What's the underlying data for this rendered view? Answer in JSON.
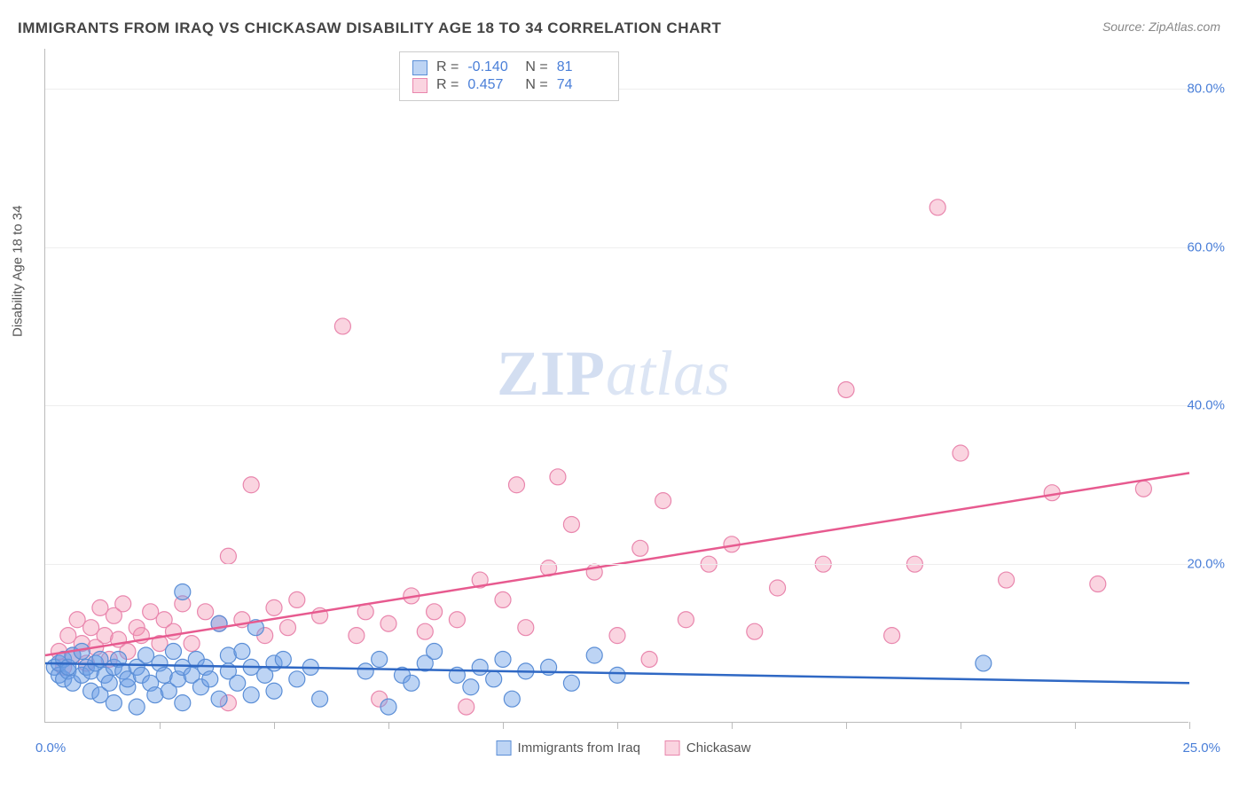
{
  "title": "IMMIGRANTS FROM IRAQ VS CHICKASAW DISABILITY AGE 18 TO 34 CORRELATION CHART",
  "source": "Source: ZipAtlas.com",
  "ylabel": "Disability Age 18 to 34",
  "watermark": {
    "a": "ZIP",
    "b": "atlas"
  },
  "axes": {
    "x_label_min": "0.0%",
    "x_label_max": "25.0%",
    "xlim": [
      0,
      25
    ],
    "ylim": [
      0,
      85
    ],
    "y_ticks": [
      20,
      40,
      60,
      80
    ],
    "y_tick_labels": [
      "20.0%",
      "40.0%",
      "60.0%",
      "80.0%"
    ],
    "x_tick_positions": [
      2.5,
      5.0,
      7.5,
      10.0,
      12.5,
      15.0,
      17.5,
      20.0,
      22.5,
      25.0
    ]
  },
  "legend": {
    "series_a": "Immigrants from Iraq",
    "series_b": "Chickasaw"
  },
  "stats": {
    "a": {
      "R_label": "R =",
      "R": "-0.140",
      "N_label": "N =",
      "N": "81"
    },
    "b": {
      "R_label": "R =",
      "R": "0.457",
      "N_label": "N =",
      "N": "74"
    }
  },
  "series_a": {
    "name": "Immigrants from Iraq",
    "color_fill": "rgba(108,160,230,0.45)",
    "color_stroke": "#5b8ed6",
    "marker_radius": 9,
    "line_color": "#2f68c4",
    "line_width": 2.5,
    "trend": {
      "x1": 0,
      "y1": 7.5,
      "x2": 25,
      "y2": 5.0
    },
    "points": [
      [
        0.2,
        7.0
      ],
      [
        0.3,
        6.0
      ],
      [
        0.3,
        7.5
      ],
      [
        0.4,
        5.5
      ],
      [
        0.4,
        8.0
      ],
      [
        0.5,
        6.5
      ],
      [
        0.5,
        7.0
      ],
      [
        0.6,
        8.5
      ],
      [
        0.6,
        5.0
      ],
      [
        0.8,
        6.0
      ],
      [
        0.8,
        9.0
      ],
      [
        0.9,
        7.0
      ],
      [
        1.0,
        6.5
      ],
      [
        1.0,
        4.0
      ],
      [
        1.1,
        7.5
      ],
      [
        1.2,
        3.5
      ],
      [
        1.2,
        8.0
      ],
      [
        1.3,
        6.0
      ],
      [
        1.4,
        5.0
      ],
      [
        1.5,
        7.0
      ],
      [
        1.5,
        2.5
      ],
      [
        1.6,
        8.0
      ],
      [
        1.7,
        6.5
      ],
      [
        1.8,
        4.5
      ],
      [
        1.8,
        5.5
      ],
      [
        2.0,
        7.0
      ],
      [
        2.0,
        2.0
      ],
      [
        2.1,
        6.0
      ],
      [
        2.2,
        8.5
      ],
      [
        2.3,
        5.0
      ],
      [
        2.4,
        3.5
      ],
      [
        2.5,
        7.5
      ],
      [
        2.6,
        6.0
      ],
      [
        2.7,
        4.0
      ],
      [
        2.8,
        9.0
      ],
      [
        2.9,
        5.5
      ],
      [
        3.0,
        7.0
      ],
      [
        3.0,
        2.5
      ],
      [
        3.0,
        16.5
      ],
      [
        3.2,
        6.0
      ],
      [
        3.3,
        8.0
      ],
      [
        3.4,
        4.5
      ],
      [
        3.5,
        7.0
      ],
      [
        3.6,
        5.5
      ],
      [
        3.8,
        3.0
      ],
      [
        3.8,
        12.5
      ],
      [
        4.0,
        6.5
      ],
      [
        4.0,
        8.5
      ],
      [
        4.2,
        5.0
      ],
      [
        4.3,
        9.0
      ],
      [
        4.5,
        7.0
      ],
      [
        4.5,
        3.5
      ],
      [
        4.6,
        12.0
      ],
      [
        4.8,
        6.0
      ],
      [
        5.0,
        7.5
      ],
      [
        5.0,
        4.0
      ],
      [
        5.2,
        8.0
      ],
      [
        5.5,
        5.5
      ],
      [
        5.8,
        7.0
      ],
      [
        6.0,
        3.0
      ],
      [
        7.0,
        6.5
      ],
      [
        7.3,
        8.0
      ],
      [
        7.5,
        2.0
      ],
      [
        7.8,
        6.0
      ],
      [
        8.0,
        5.0
      ],
      [
        8.3,
        7.5
      ],
      [
        8.5,
        9.0
      ],
      [
        9.0,
        6.0
      ],
      [
        9.3,
        4.5
      ],
      [
        9.5,
        7.0
      ],
      [
        9.8,
        5.5
      ],
      [
        10.0,
        8.0
      ],
      [
        10.2,
        3.0
      ],
      [
        10.5,
        6.5
      ],
      [
        11.0,
        7.0
      ],
      [
        11.5,
        5.0
      ],
      [
        12.0,
        8.5
      ],
      [
        12.5,
        6.0
      ],
      [
        20.5,
        7.5
      ]
    ]
  },
  "series_b": {
    "name": "Chickasaw",
    "color_fill": "rgba(242,148,178,0.40)",
    "color_stroke": "#e986ad",
    "marker_radius": 9,
    "line_color": "#e75a8f",
    "line_width": 2.5,
    "trend": {
      "x1": 0,
      "y1": 8.5,
      "x2": 25,
      "y2": 31.5
    },
    "points": [
      [
        0.3,
        9.0
      ],
      [
        0.4,
        7.0
      ],
      [
        0.5,
        11.0
      ],
      [
        0.6,
        8.5
      ],
      [
        0.7,
        13.0
      ],
      [
        0.8,
        10.0
      ],
      [
        0.9,
        7.5
      ],
      [
        1.0,
        12.0
      ],
      [
        1.1,
        9.5
      ],
      [
        1.2,
        14.5
      ],
      [
        1.3,
        11.0
      ],
      [
        1.4,
        8.0
      ],
      [
        1.5,
        13.5
      ],
      [
        1.6,
        10.5
      ],
      [
        1.7,
        15.0
      ],
      [
        1.8,
        9.0
      ],
      [
        2.0,
        12.0
      ],
      [
        2.1,
        11.0
      ],
      [
        2.3,
        14.0
      ],
      [
        2.5,
        10.0
      ],
      [
        2.6,
        13.0
      ],
      [
        2.8,
        11.5
      ],
      [
        3.0,
        15.0
      ],
      [
        3.2,
        10.0
      ],
      [
        3.5,
        14.0
      ],
      [
        3.8,
        12.5
      ],
      [
        4.0,
        21.0
      ],
      [
        4.0,
        2.5
      ],
      [
        4.3,
        13.0
      ],
      [
        4.5,
        30.0
      ],
      [
        4.8,
        11.0
      ],
      [
        5.0,
        14.5
      ],
      [
        5.3,
        12.0
      ],
      [
        5.5,
        15.5
      ],
      [
        6.0,
        13.5
      ],
      [
        6.5,
        50.0
      ],
      [
        6.8,
        11.0
      ],
      [
        7.0,
        14.0
      ],
      [
        7.3,
        3.0
      ],
      [
        7.5,
        12.5
      ],
      [
        8.0,
        16.0
      ],
      [
        8.3,
        11.5
      ],
      [
        8.5,
        14.0
      ],
      [
        9.0,
        13.0
      ],
      [
        9.2,
        2.0
      ],
      [
        9.5,
        18.0
      ],
      [
        10.0,
        15.5
      ],
      [
        10.3,
        30.0
      ],
      [
        10.5,
        12.0
      ],
      [
        11.0,
        19.5
      ],
      [
        11.2,
        31.0
      ],
      [
        11.5,
        25.0
      ],
      [
        12.0,
        19.0
      ],
      [
        12.5,
        11.0
      ],
      [
        13.0,
        22.0
      ],
      [
        13.2,
        8.0
      ],
      [
        13.5,
        28.0
      ],
      [
        14.0,
        13.0
      ],
      [
        14.5,
        20.0
      ],
      [
        15.0,
        22.5
      ],
      [
        15.5,
        11.5
      ],
      [
        16.0,
        17.0
      ],
      [
        17.0,
        20.0
      ],
      [
        17.5,
        42.0
      ],
      [
        18.5,
        11.0
      ],
      [
        19.0,
        20.0
      ],
      [
        19.5,
        65.0
      ],
      [
        20.0,
        34.0
      ],
      [
        21.0,
        18.0
      ],
      [
        22.0,
        29.0
      ],
      [
        23.0,
        17.5
      ],
      [
        24.0,
        29.5
      ]
    ]
  },
  "colors": {
    "axis": "#bbbbbb",
    "grid": "#eeeeee",
    "text": "#555555",
    "value": "#4a7fd8",
    "background": "#ffffff"
  }
}
